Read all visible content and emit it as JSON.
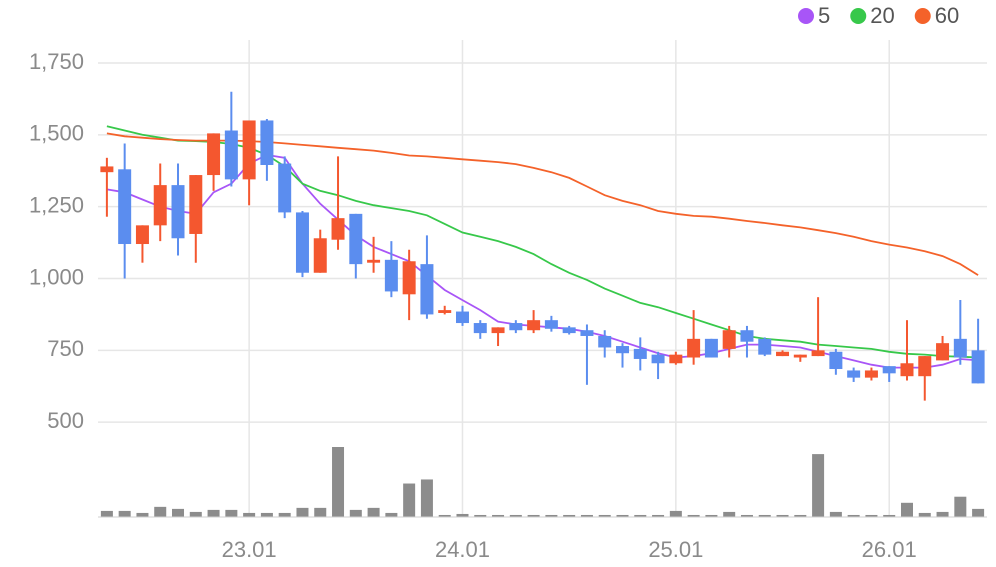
{
  "chart_data": {
    "type": "candlestick",
    "categories": [
      null,
      null,
      null,
      null,
      null,
      null,
      null,
      null,
      "23.01",
      null,
      null,
      null,
      null,
      null,
      null,
      null,
      null,
      null,
      null,
      null,
      "24.01",
      null,
      null,
      null,
      null,
      null,
      null,
      null,
      null,
      null,
      null,
      null,
      "25.01",
      null,
      null,
      null,
      null,
      null,
      null,
      null,
      null,
      null,
      null,
      null,
      "26.01",
      null,
      null,
      null,
      null,
      null
    ],
    "open": [
      1370,
      1380,
      1120,
      1185,
      1325,
      1155,
      1360,
      1515,
      1345,
      1550,
      1400,
      1230,
      1020,
      1135,
      1225,
      1055,
      1065,
      945,
      1050,
      880,
      885,
      845,
      810,
      845,
      820,
      855,
      830,
      820,
      800,
      765,
      755,
      735,
      705,
      725,
      790,
      755,
      820,
      790,
      730,
      725,
      730,
      745,
      680,
      655,
      695,
      660,
      660,
      715,
      790,
      750
    ],
    "high": [
      1420,
      1470,
      1185,
      1400,
      1400,
      1360,
      1505,
      1650,
      1550,
      1555,
      1425,
      1235,
      1170,
      1425,
      1225,
      1145,
      1130,
      1100,
      1150,
      905,
      905,
      855,
      830,
      855,
      890,
      870,
      835,
      840,
      820,
      775,
      795,
      745,
      745,
      890,
      790,
      835,
      835,
      795,
      750,
      735,
      935,
      755,
      690,
      690,
      695,
      855,
      730,
      800,
      925,
      860
    ],
    "low": [
      1215,
      1000,
      1055,
      1130,
      1080,
      1055,
      1305,
      1320,
      1255,
      1340,
      1210,
      1005,
      1020,
      1100,
      1000,
      1020,
      935,
      855,
      860,
      875,
      835,
      790,
      765,
      810,
      810,
      815,
      805,
      630,
      725,
      690,
      680,
      650,
      700,
      700,
      725,
      725,
      725,
      730,
      730,
      710,
      730,
      665,
      640,
      645,
      640,
      645,
      575,
      715,
      700,
      635
    ],
    "close": [
      1390,
      1120,
      1185,
      1325,
      1140,
      1360,
      1505,
      1345,
      1550,
      1395,
      1230,
      1020,
      1140,
      1210,
      1050,
      1065,
      955,
      1060,
      875,
      890,
      845,
      810,
      830,
      820,
      855,
      825,
      810,
      800,
      760,
      740,
      720,
      705,
      735,
      790,
      725,
      820,
      780,
      735,
      745,
      735,
      750,
      685,
      655,
      680,
      670,
      705,
      730,
      775,
      725,
      635
    ],
    "up_color": "#f4572f",
    "down_color": "#5b8def",
    "volume": {
      "color": "#8c8c8c",
      "values": [
        6,
        6,
        4,
        10,
        8,
        5,
        7,
        7,
        4,
        4,
        4,
        9,
        9,
        69,
        7,
        9,
        4,
        33,
        37,
        2,
        3,
        2,
        2,
        2,
        2,
        2,
        2,
        2,
        2,
        2,
        2,
        2,
        6,
        2,
        2,
        5,
        2,
        2,
        2,
        2,
        62,
        5,
        2,
        2,
        2,
        14,
        4,
        5,
        20,
        8
      ]
    },
    "series": [
      {
        "name": "5",
        "color": "#a855f7",
        "values": [
          1310,
          1300,
          1275,
          1250,
          1235,
          1225,
          1300,
          1330,
          1400,
          1430,
          1420,
          1330,
          1260,
          1205,
          1150,
          1110,
          1085,
          1060,
          1010,
          960,
          925,
          890,
          850,
          840,
          835,
          830,
          825,
          815,
          800,
          780,
          760,
          740,
          725,
          730,
          740,
          755,
          770,
          770,
          765,
          760,
          745,
          730,
          715,
          700,
          690,
          690,
          690,
          700,
          720,
          715
        ]
      },
      {
        "name": "20",
        "color": "#37c84a",
        "values": [
          1530,
          1515,
          1500,
          1490,
          1480,
          1478,
          1475,
          1468,
          1455,
          1430,
          1390,
          1330,
          1305,
          1290,
          1270,
          1255,
          1245,
          1235,
          1220,
          1190,
          1160,
          1145,
          1130,
          1110,
          1085,
          1050,
          1020,
          995,
          965,
          940,
          915,
          900,
          880,
          860,
          840,
          820,
          800,
          790,
          785,
          780,
          770,
          765,
          760,
          755,
          745,
          738,
          735,
          730,
          728,
          725
        ]
      },
      {
        "name": "60",
        "color": "#f4622a",
        "values": [
          1505,
          1495,
          1490,
          1485,
          1482,
          1480,
          1480,
          1480,
          1478,
          1475,
          1470,
          1465,
          1460,
          1455,
          1450,
          1445,
          1437,
          1428,
          1425,
          1420,
          1415,
          1410,
          1405,
          1398,
          1385,
          1370,
          1350,
          1320,
          1290,
          1270,
          1255,
          1235,
          1225,
          1218,
          1215,
          1208,
          1200,
          1193,
          1185,
          1178,
          1168,
          1158,
          1145,
          1130,
          1118,
          1108,
          1095,
          1078,
          1050,
          1012
        ]
      }
    ],
    "ylim": [
      170,
      1830
    ],
    "yticks": [
      500,
      750,
      {
        "value": 1000,
        "label": "1,000"
      },
      {
        "value": 1250,
        "label": "1,250"
      },
      {
        "value": 1500,
        "label": "1,500"
      },
      {
        "value": 1750,
        "label": "1,750"
      }
    ],
    "grid": true
  }
}
